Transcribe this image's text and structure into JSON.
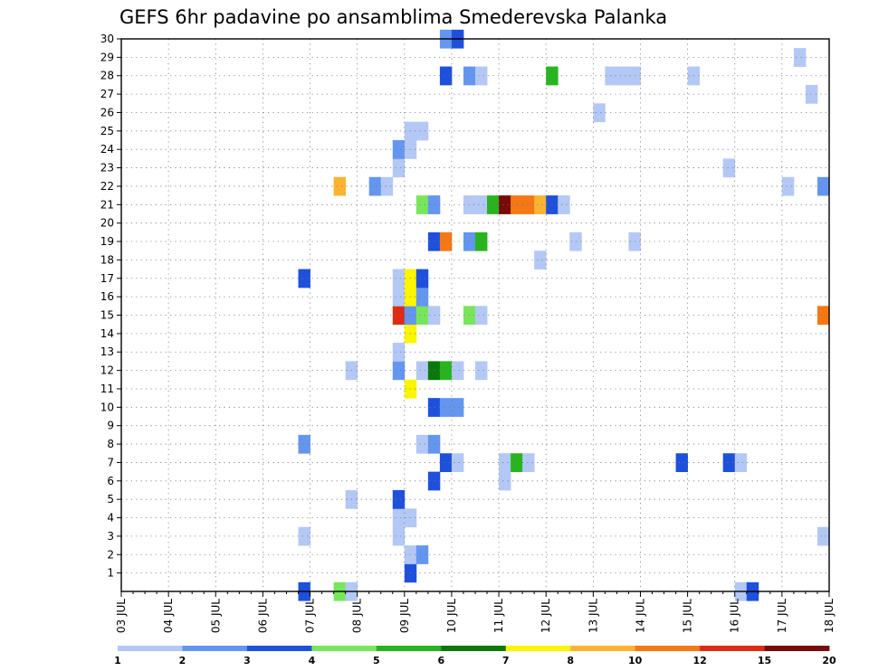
{
  "chart_data": {
    "type": "heatmap",
    "title": "GEFS 6hr padavine po ansamblima Smederevska Palanka",
    "x_tick_labels": [
      "03 JUL",
      "04 JUL",
      "05 JUL",
      "06 JUL",
      "07 JUL",
      "08 JUL",
      "09 JUL",
      "10 JUL",
      "11 JUL",
      "12 JUL",
      "13 JUL",
      "14 JUL",
      "15 JUL",
      "16 JUL",
      "17 JUL",
      "18 JUL"
    ],
    "y_tick_labels": [
      "1",
      "2",
      "3",
      "4",
      "5",
      "6",
      "7",
      "8",
      "9",
      "10",
      "11",
      "12",
      "13",
      "14",
      "15",
      "16",
      "17",
      "18",
      "19",
      "20",
      "21",
      "22",
      "23",
      "24",
      "25",
      "26",
      "27",
      "28",
      "29",
      "30"
    ],
    "x_range_steps": [
      0,
      60
    ],
    "y_range_members": [
      0,
      30
    ],
    "grid": true,
    "colorbar": {
      "position": "bottom",
      "boundaries": [
        "1",
        "2",
        "3",
        "4",
        "5",
        "6",
        "7",
        "8",
        "10",
        "12",
        "15",
        "20"
      ],
      "colors": [
        "#b4c8f5",
        "#6496f0",
        "#1e50dc",
        "#78e65a",
        "#28b41e",
        "#0a780a",
        "#faf500",
        "#fab432",
        "#f57814",
        "#dc2d14",
        "#780a0a"
      ]
    },
    "cells": [
      {
        "member": 0,
        "step": 15,
        "level": 3
      },
      {
        "member": 0,
        "step": 18,
        "level": 4
      },
      {
        "member": 0,
        "step": 19,
        "level": 1
      },
      {
        "member": 0,
        "step": 52,
        "level": 1
      },
      {
        "member": 0,
        "step": 53,
        "level": 3
      },
      {
        "member": 1,
        "step": 24,
        "level": 3
      },
      {
        "member": 2,
        "step": 24,
        "level": 1
      },
      {
        "member": 2,
        "step": 25,
        "level": 2
      },
      {
        "member": 3,
        "step": 15,
        "level": 1
      },
      {
        "member": 3,
        "step": 23,
        "level": 1
      },
      {
        "member": 3,
        "step": 59,
        "level": 1
      },
      {
        "member": 4,
        "step": 23,
        "level": 1
      },
      {
        "member": 4,
        "step": 24,
        "level": 1
      },
      {
        "member": 5,
        "step": 19,
        "level": 1
      },
      {
        "member": 5,
        "step": 23,
        "level": 3
      },
      {
        "member": 6,
        "step": 26,
        "level": 3
      },
      {
        "member": 6,
        "step": 32,
        "level": 1
      },
      {
        "member": 7,
        "step": 27,
        "level": 3
      },
      {
        "member": 7,
        "step": 28,
        "level": 1
      },
      {
        "member": 7,
        "step": 32,
        "level": 1
      },
      {
        "member": 7,
        "step": 33,
        "level": 5
      },
      {
        "member": 7,
        "step": 34,
        "level": 1
      },
      {
        "member": 7,
        "step": 47,
        "level": 3
      },
      {
        "member": 7,
        "step": 51,
        "level": 3
      },
      {
        "member": 7,
        "step": 52,
        "level": 1
      },
      {
        "member": 8,
        "step": 15,
        "level": 2
      },
      {
        "member": 8,
        "step": 25,
        "level": 1
      },
      {
        "member": 8,
        "step": 26,
        "level": 2
      },
      {
        "member": 10,
        "step": 26,
        "level": 3
      },
      {
        "member": 10,
        "step": 27,
        "level": 2
      },
      {
        "member": 10,
        "step": 28,
        "level": 2
      },
      {
        "member": 11,
        "step": 24,
        "level": 7
      },
      {
        "member": 12,
        "step": 19,
        "level": 1
      },
      {
        "member": 12,
        "step": 23,
        "level": 2
      },
      {
        "member": 12,
        "step": 25,
        "level": 1
      },
      {
        "member": 12,
        "step": 26,
        "level": 6
      },
      {
        "member": 12,
        "step": 27,
        "level": 5
      },
      {
        "member": 12,
        "step": 28,
        "level": 1
      },
      {
        "member": 12,
        "step": 30,
        "level": 1
      },
      {
        "member": 13,
        "step": 23,
        "level": 1
      },
      {
        "member": 14,
        "step": 24,
        "level": 7
      },
      {
        "member": 15,
        "step": 23,
        "level": 10
      },
      {
        "member": 15,
        "step": 24,
        "level": 2
      },
      {
        "member": 15,
        "step": 25,
        "level": 4
      },
      {
        "member": 15,
        "step": 26,
        "level": 1
      },
      {
        "member": 15,
        "step": 29,
        "level": 4
      },
      {
        "member": 15,
        "step": 30,
        "level": 1
      },
      {
        "member": 15,
        "step": 59,
        "level": 9
      },
      {
        "member": 16,
        "step": 23,
        "level": 1
      },
      {
        "member": 16,
        "step": 24,
        "level": 7
      },
      {
        "member": 16,
        "step": 25,
        "level": 2
      },
      {
        "member": 17,
        "step": 15,
        "level": 3
      },
      {
        "member": 17,
        "step": 23,
        "level": 1
      },
      {
        "member": 17,
        "step": 24,
        "level": 7
      },
      {
        "member": 17,
        "step": 25,
        "level": 3
      },
      {
        "member": 18,
        "step": 35,
        "level": 1
      },
      {
        "member": 19,
        "step": 26,
        "level": 3
      },
      {
        "member": 19,
        "step": 27,
        "level": 9
      },
      {
        "member": 19,
        "step": 29,
        "level": 2
      },
      {
        "member": 19,
        "step": 30,
        "level": 5
      },
      {
        "member": 19,
        "step": 38,
        "level": 1
      },
      {
        "member": 19,
        "step": 43,
        "level": 1
      },
      {
        "member": 21,
        "step": 25,
        "level": 4
      },
      {
        "member": 21,
        "step": 26,
        "level": 2
      },
      {
        "member": 21,
        "step": 29,
        "level": 1
      },
      {
        "member": 21,
        "step": 30,
        "level": 1
      },
      {
        "member": 21,
        "step": 31,
        "level": 5
      },
      {
        "member": 21,
        "step": 32,
        "level": 11
      },
      {
        "member": 21,
        "step": 33,
        "level": 9
      },
      {
        "member": 21,
        "step": 34,
        "level": 9
      },
      {
        "member": 21,
        "step": 35,
        "level": 8
      },
      {
        "member": 21,
        "step": 36,
        "level": 3
      },
      {
        "member": 21,
        "step": 37,
        "level": 1
      },
      {
        "member": 22,
        "step": 18,
        "level": 8
      },
      {
        "member": 22,
        "step": 21,
        "level": 2
      },
      {
        "member": 22,
        "step": 22,
        "level": 1
      },
      {
        "member": 22,
        "step": 56,
        "level": 1
      },
      {
        "member": 22,
        "step": 59,
        "level": 2
      },
      {
        "member": 23,
        "step": 23,
        "level": 1
      },
      {
        "member": 23,
        "step": 51,
        "level": 1
      },
      {
        "member": 24,
        "step": 23,
        "level": 2
      },
      {
        "member": 24,
        "step": 24,
        "level": 1
      },
      {
        "member": 25,
        "step": 24,
        "level": 1
      },
      {
        "member": 25,
        "step": 25,
        "level": 1
      },
      {
        "member": 26,
        "step": 40,
        "level": 1
      },
      {
        "member": 27,
        "step": 58,
        "level": 1
      },
      {
        "member": 28,
        "step": 27,
        "level": 3
      },
      {
        "member": 28,
        "step": 29,
        "level": 2
      },
      {
        "member": 28,
        "step": 30,
        "level": 1
      },
      {
        "member": 28,
        "step": 36,
        "level": 5
      },
      {
        "member": 28,
        "step": 41,
        "level": 1
      },
      {
        "member": 28,
        "step": 42,
        "level": 1
      },
      {
        "member": 28,
        "step": 43,
        "level": 1
      },
      {
        "member": 28,
        "step": 48,
        "level": 1
      },
      {
        "member": 29,
        "step": 57,
        "level": 1
      },
      {
        "member": 30,
        "step": 27,
        "level": 2
      },
      {
        "member": 30,
        "step": 28,
        "level": 3
      }
    ]
  }
}
